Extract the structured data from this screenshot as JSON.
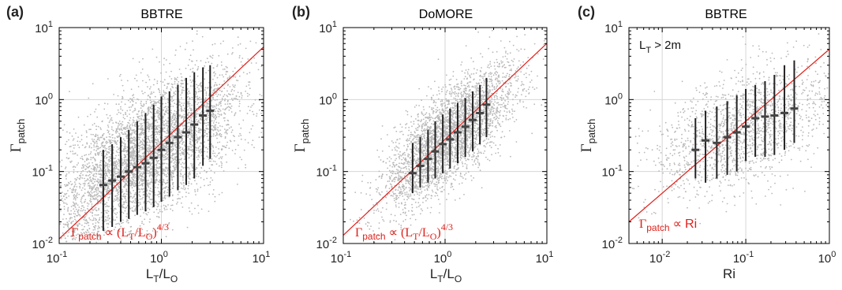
{
  "chart_data": [
    {
      "type": "scatter",
      "panel_label": "(a)",
      "title": "BBTRE",
      "xlabel": "L_T/L_O",
      "ylabel": "Γ_patch",
      "xscale": "log",
      "yscale": "log",
      "xlim": [
        0.1,
        10
      ],
      "ylim": [
        0.01,
        10
      ],
      "x_ticks": [
        "10^-1",
        "10^0",
        "10^1"
      ],
      "y_ticks": [
        "10^-2",
        "10^-1",
        "10^0",
        "10^1"
      ],
      "grid": true,
      "annotation": "Γ_patch ∝ (L_T/L_O)^4/3",
      "fit_line": {
        "law": "power",
        "exponent": 1.333,
        "y_at_x1": 0.25,
        "color": "#e0201a"
      },
      "binned_medians": {
        "x": [
          0.27,
          0.33,
          0.4,
          0.48,
          0.58,
          0.7,
          0.84,
          1.0,
          1.2,
          1.45,
          1.75,
          2.1,
          2.55,
          3.0
        ],
        "y": [
          0.065,
          0.075,
          0.085,
          0.1,
          0.115,
          0.13,
          0.155,
          0.2,
          0.25,
          0.3,
          0.35,
          0.45,
          0.6,
          0.7
        ],
        "y_low": [
          0.015,
          0.017,
          0.02,
          0.022,
          0.025,
          0.028,
          0.032,
          0.038,
          0.045,
          0.055,
          0.065,
          0.08,
          0.12,
          0.15
        ],
        "y_high": [
          0.2,
          0.24,
          0.3,
          0.38,
          0.5,
          0.65,
          0.85,
          1.1,
          1.3,
          1.6,
          2.0,
          2.4,
          2.8,
          3.0
        ]
      },
      "scatter_cloud": {
        "n": 5000,
        "x_range": [
          0.1,
          5
        ],
        "slope": 0.8,
        "spread_decades": 0.45,
        "y_at_x1": 0.22
      }
    },
    {
      "type": "scatter",
      "panel_label": "(b)",
      "title": "DoMORE",
      "xlabel": "L_T/L_O",
      "ylabel": "Γ_patch",
      "xscale": "log",
      "yscale": "log",
      "xlim": [
        0.1,
        10
      ],
      "ylim": [
        0.01,
        10
      ],
      "x_ticks": [
        "10^-1",
        "10^0",
        "10^1"
      ],
      "y_ticks": [
        "10^-2",
        "10^-1",
        "10^0",
        "10^1"
      ],
      "grid": true,
      "annotation": "Γ_patch ∝ (L_T/L_O)^4/3",
      "fit_line": {
        "law": "power",
        "exponent": 1.333,
        "y_at_x1": 0.28,
        "color": "#e0201a"
      },
      "binned_medians": {
        "x": [
          0.48,
          0.57,
          0.68,
          0.8,
          0.95,
          1.12,
          1.33,
          1.58,
          1.87,
          2.2,
          2.55
        ],
        "y": [
          0.095,
          0.12,
          0.15,
          0.19,
          0.24,
          0.28,
          0.35,
          0.42,
          0.52,
          0.65,
          0.85
        ],
        "y_low": [
          0.05,
          0.06,
          0.07,
          0.08,
          0.095,
          0.11,
          0.13,
          0.16,
          0.19,
          0.24,
          0.3
        ],
        "y_high": [
          0.25,
          0.3,
          0.38,
          0.5,
          0.62,
          0.75,
          0.9,
          1.05,
          1.3,
          1.6,
          2.0
        ]
      },
      "scatter_cloud": {
        "n": 3500,
        "x_range": [
          0.3,
          4
        ],
        "slope": 1.1,
        "spread_decades": 0.33,
        "y_at_x1": 0.28
      }
    },
    {
      "type": "scatter",
      "panel_label": "(c)",
      "title": "BBTRE",
      "xlabel": "Ri",
      "ylabel": "Γ_patch",
      "xscale": "log",
      "yscale": "log",
      "xlim": [
        0.004,
        1
      ],
      "ylim": [
        0.01,
        10
      ],
      "x_ticks": [
        "10^-2",
        "10^-1",
        "10^0"
      ],
      "y_ticks": [
        "10^-2",
        "10^-1",
        "10^0",
        "10^1"
      ],
      "grid": true,
      "annotation": "Γ_patch ∝ Ri",
      "inset_text": "L_T > 2m",
      "fit_line": {
        "law": "power",
        "exponent": 1.0,
        "y_at_x1": 5.0,
        "color": "#e0201a"
      },
      "binned_medians": {
        "x": [
          0.025,
          0.033,
          0.045,
          0.06,
          0.078,
          0.1,
          0.13,
          0.17,
          0.22,
          0.29,
          0.38
        ],
        "y": [
          0.2,
          0.27,
          0.25,
          0.3,
          0.35,
          0.42,
          0.55,
          0.58,
          0.6,
          0.65,
          0.75
        ],
        "y_low": [
          0.08,
          0.07,
          0.08,
          0.09,
          0.1,
          0.14,
          0.16,
          0.16,
          0.17,
          0.2,
          0.25
        ],
        "y_high": [
          0.55,
          0.7,
          0.8,
          0.95,
          1.15,
          1.4,
          1.6,
          1.8,
          2.2,
          3.0,
          3.5
        ]
      },
      "scatter_cloud": {
        "n": 1800,
        "x_range": [
          0.01,
          0.9
        ],
        "slope": 0.4,
        "spread_decades": 0.38,
        "y_at_x1": 1.0
      }
    }
  ]
}
